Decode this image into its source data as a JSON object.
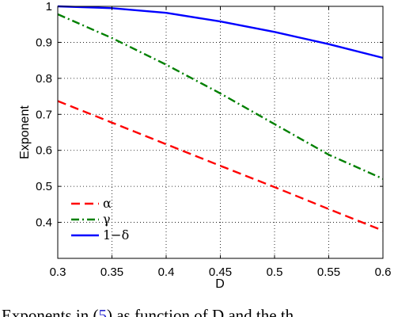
{
  "caption": {
    "before": "Exponents in (",
    "ref": "5",
    "after": ") as function of D and the th"
  },
  "chart_data": {
    "type": "line",
    "title": "",
    "xlabel": "D",
    "ylabel": "Exponent",
    "xlim": [
      0.3,
      0.6
    ],
    "ylim": [
      0.3,
      1.0
    ],
    "xticks": [
      0.3,
      0.35,
      0.4,
      0.45,
      0.5,
      0.55,
      0.6
    ],
    "xtick_labels": [
      "0.3",
      "0.35",
      "0.4",
      "0.45",
      "0.5",
      "0.55",
      "0.6"
    ],
    "yticks": [
      0.4,
      0.5,
      0.6,
      0.7,
      0.8,
      0.9,
      1.0
    ],
    "ytick_labels": [
      "0.4",
      "0.5",
      "0.6",
      "0.7",
      "0.8",
      "0.9",
      "1"
    ],
    "grid": true,
    "legend_position": "bottom-left",
    "series": [
      {
        "name": "α",
        "color": "#ff0000",
        "style": "dashed",
        "x": [
          0.3,
          0.35,
          0.4,
          0.45,
          0.5,
          0.55,
          0.6
        ],
        "y": [
          0.737,
          0.677,
          0.617,
          0.557,
          0.498,
          0.437,
          0.377
        ]
      },
      {
        "name": "γ",
        "color": "#008000",
        "style": "dashdot",
        "x": [
          0.3,
          0.35,
          0.4,
          0.45,
          0.5,
          0.55,
          0.6
        ],
        "y": [
          0.978,
          0.912,
          0.838,
          0.758,
          0.673,
          0.588,
          0.521
        ]
      },
      {
        "name": "1−δ",
        "color": "#0000ff",
        "style": "solid",
        "x": [
          0.3,
          0.35,
          0.4,
          0.45,
          0.5,
          0.55,
          0.6
        ],
        "y": [
          1.0,
          0.995,
          0.982,
          0.958,
          0.929,
          0.895,
          0.857
        ]
      }
    ]
  }
}
